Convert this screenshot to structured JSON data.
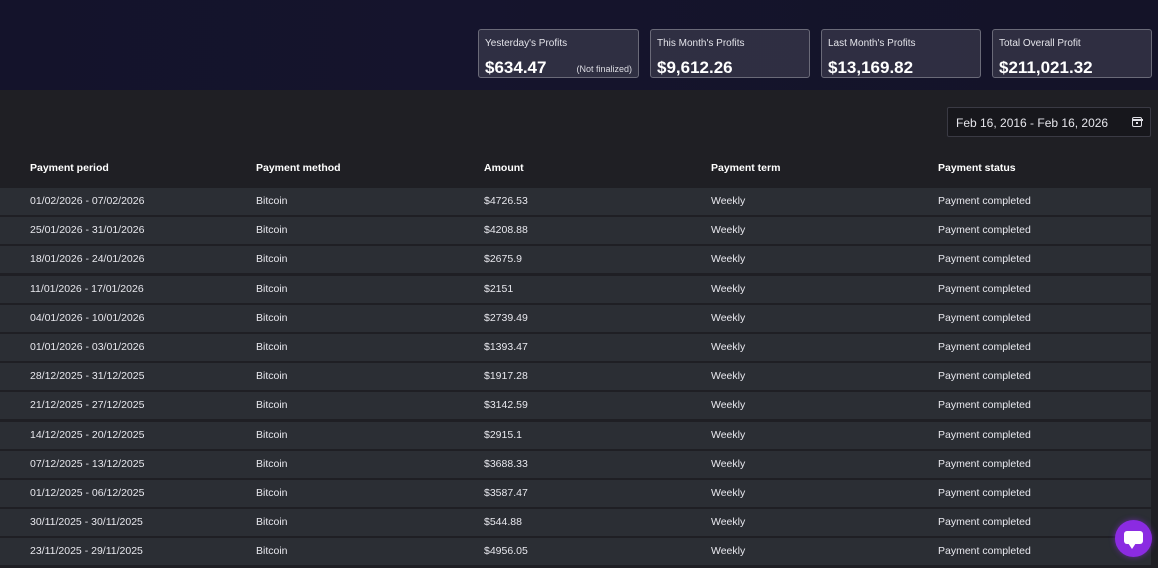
{
  "stats": [
    {
      "label": "Yesterday's Profits",
      "value": "$634.47",
      "note": "(Not finalized)"
    },
    {
      "label": "This Month's Profits",
      "value": "$9,612.26",
      "note": ""
    },
    {
      "label": "Last Month's Profits",
      "value": "$13,169.82",
      "note": ""
    },
    {
      "label": "Total Overall Profit",
      "value": "$211,021.32",
      "note": ""
    }
  ],
  "date_range": {
    "text": "Feb 16, 2016 - Feb 16, 2026",
    "icon": "calendar-icon"
  },
  "table": {
    "headers": [
      "Payment period",
      "Payment method",
      "Amount",
      "Payment term",
      "Payment status"
    ],
    "rows": [
      [
        "01/02/2026 - 07/02/2026",
        "Bitcoin",
        "$4726.53",
        "Weekly",
        "Payment completed"
      ],
      [
        "25/01/2026 - 31/01/2026",
        "Bitcoin",
        "$4208.88",
        "Weekly",
        "Payment completed"
      ],
      [
        "18/01/2026 - 24/01/2026",
        "Bitcoin",
        "$2675.9",
        "Weekly",
        "Payment completed"
      ],
      [
        "11/01/2026 - 17/01/2026",
        "Bitcoin",
        "$2151",
        "Weekly",
        "Payment completed"
      ],
      [
        "04/01/2026 - 10/01/2026",
        "Bitcoin",
        "$2739.49",
        "Weekly",
        "Payment completed"
      ],
      [
        "01/01/2026 - 03/01/2026",
        "Bitcoin",
        "$1393.47",
        "Weekly",
        "Payment completed"
      ],
      [
        "28/12/2025 - 31/12/2025",
        "Bitcoin",
        "$1917.28",
        "Weekly",
        "Payment completed"
      ],
      [
        "21/12/2025 - 27/12/2025",
        "Bitcoin",
        "$3142.59",
        "Weekly",
        "Payment completed"
      ],
      [
        "14/12/2025 - 20/12/2025",
        "Bitcoin",
        "$2915.1",
        "Weekly",
        "Payment completed"
      ],
      [
        "07/12/2025 - 13/12/2025",
        "Bitcoin",
        "$3688.33",
        "Weekly",
        "Payment completed"
      ],
      [
        "01/12/2025 - 06/12/2025",
        "Bitcoin",
        "$3587.47",
        "Weekly",
        "Payment completed"
      ],
      [
        "30/11/2025 - 30/11/2025",
        "Bitcoin",
        "$544.88",
        "Weekly",
        "Payment completed"
      ],
      [
        "23/11/2025 - 29/11/2025",
        "Bitcoin",
        "$4956.05",
        "Weekly",
        "Payment completed"
      ]
    ]
  },
  "chat": {
    "icon": "chat-bubble-icon",
    "color": "#8b2be2"
  }
}
